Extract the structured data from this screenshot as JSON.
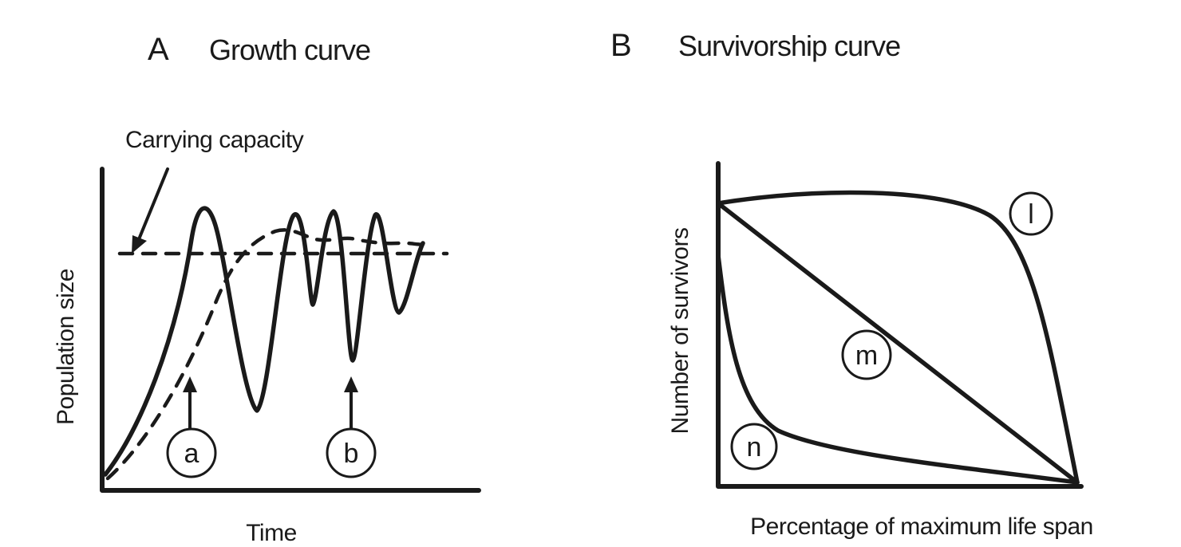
{
  "panel_a": {
    "letter": "A",
    "title": "Growth curve",
    "annotation": "Carrying capacity",
    "ylabel": "Population size",
    "xlabel": "Time",
    "labels": {
      "a": "a",
      "b": "b"
    }
  },
  "panel_b": {
    "letter": "B",
    "title": "Survivorship curve",
    "ylabel": "Number of survivors",
    "xlabel": "Percentage of maximum life span",
    "labels": {
      "l": "l",
      "m": "m",
      "n": "n"
    }
  },
  "colors": {
    "ink": "#1a1a1a",
    "background": "#ffffff"
  }
}
